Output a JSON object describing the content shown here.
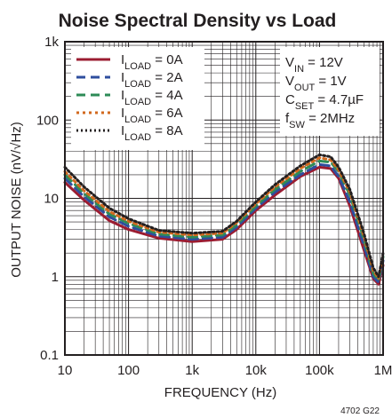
{
  "chart_data": {
    "type": "line",
    "title": "Noise Spectral Density vs Load",
    "xlabel": "FREQUENCY (Hz)",
    "ylabel": "OUTPUT NOISE (nV/√Hz)",
    "x_scale": "log",
    "y_scale": "log",
    "xlim": [
      10,
      1000000
    ],
    "ylim": [
      0.1,
      1000
    ],
    "grid": true,
    "legend_position": "top-left",
    "x_tick_labels": [
      "10",
      "100",
      "1k",
      "10k",
      "100k",
      "1M"
    ],
    "y_tick_labels": [
      "0.1",
      "1",
      "10",
      "100",
      "1k"
    ],
    "conditions": [
      "V_IN = 12V",
      "V_OUT = 1V",
      "C_SET = 4.7µF",
      "f_SW = 2MHz"
    ],
    "footnote": "4702 G22",
    "series": [
      {
        "name": "I_LOAD = 0A",
        "color": "#9b1c31",
        "dash": "solid",
        "points": [
          [
            10,
            16
          ],
          [
            20,
            9.5
          ],
          [
            50,
            5.2
          ],
          [
            100,
            4
          ],
          [
            300,
            3.1
          ],
          [
            1000,
            2.8
          ],
          [
            3000,
            3
          ],
          [
            5000,
            4
          ],
          [
            10000,
            7
          ],
          [
            20000,
            11
          ],
          [
            50000,
            19
          ],
          [
            100000,
            25
          ],
          [
            150000,
            24
          ],
          [
            200000,
            18
          ],
          [
            300000,
            8
          ],
          [
            500000,
            2.2
          ],
          [
            700000,
            0.95
          ],
          [
            850000,
            0.8
          ],
          [
            1000000,
            1.4
          ]
        ]
      },
      {
        "name": "I_LOAD = 2A",
        "color": "#2e4e9e",
        "dash": "10 6",
        "points": [
          [
            10,
            18
          ],
          [
            20,
            10.5
          ],
          [
            50,
            5.8
          ],
          [
            100,
            4.4
          ],
          [
            300,
            3.3
          ],
          [
            1000,
            3
          ],
          [
            3000,
            3.2
          ],
          [
            5000,
            4.3
          ],
          [
            10000,
            7.5
          ],
          [
            20000,
            12
          ],
          [
            50000,
            20
          ],
          [
            100000,
            27
          ],
          [
            150000,
            26
          ],
          [
            200000,
            19
          ],
          [
            300000,
            9
          ],
          [
            500000,
            2.5
          ],
          [
            700000,
            1.0
          ],
          [
            850000,
            0.85
          ],
          [
            1000000,
            1.6
          ]
        ]
      },
      {
        "name": "I_LOAD = 4A",
        "color": "#2e8b57",
        "dash": "10 6",
        "points": [
          [
            10,
            20
          ],
          [
            20,
            11.5
          ],
          [
            50,
            6.3
          ],
          [
            100,
            4.8
          ],
          [
            300,
            3.5
          ],
          [
            1000,
            3.2
          ],
          [
            3000,
            3.4
          ],
          [
            5000,
            4.6
          ],
          [
            10000,
            8
          ],
          [
            20000,
            13
          ],
          [
            50000,
            22
          ],
          [
            100000,
            30
          ],
          [
            150000,
            29
          ],
          [
            200000,
            22
          ],
          [
            300000,
            11
          ],
          [
            500000,
            3
          ],
          [
            700000,
            1.1
          ],
          [
            850000,
            0.9
          ],
          [
            1000000,
            1.8
          ]
        ]
      },
      {
        "name": "I_LOAD = 6A",
        "color": "#d2691e",
        "dash": "3 4",
        "points": [
          [
            10,
            22
          ],
          [
            20,
            12.5
          ],
          [
            50,
            6.8
          ],
          [
            100,
            5.1
          ],
          [
            300,
            3.7
          ],
          [
            1000,
            3.4
          ],
          [
            3000,
            3.6
          ],
          [
            5000,
            4.9
          ],
          [
            10000,
            8.5
          ],
          [
            20000,
            14
          ],
          [
            50000,
            24
          ],
          [
            100000,
            33
          ],
          [
            150000,
            31
          ],
          [
            200000,
            23
          ],
          [
            300000,
            12
          ],
          [
            500000,
            3.3
          ],
          [
            700000,
            1.2
          ],
          [
            850000,
            0.95
          ],
          [
            1000000,
            1.9
          ]
        ]
      },
      {
        "name": "I_LOAD = 8A",
        "color": "#231f20",
        "dash": "2 3",
        "points": [
          [
            10,
            25
          ],
          [
            20,
            14
          ],
          [
            50,
            7.5
          ],
          [
            100,
            5.5
          ],
          [
            300,
            3.9
          ],
          [
            1000,
            3.6
          ],
          [
            3000,
            3.8
          ],
          [
            5000,
            5.1
          ],
          [
            10000,
            9
          ],
          [
            20000,
            15
          ],
          [
            50000,
            26
          ],
          [
            100000,
            36
          ],
          [
            150000,
            34
          ],
          [
            200000,
            25
          ],
          [
            300000,
            13
          ],
          [
            500000,
            3.6
          ],
          [
            700000,
            1.3
          ],
          [
            850000,
            1.0
          ],
          [
            1000000,
            2.0
          ]
        ]
      }
    ]
  }
}
